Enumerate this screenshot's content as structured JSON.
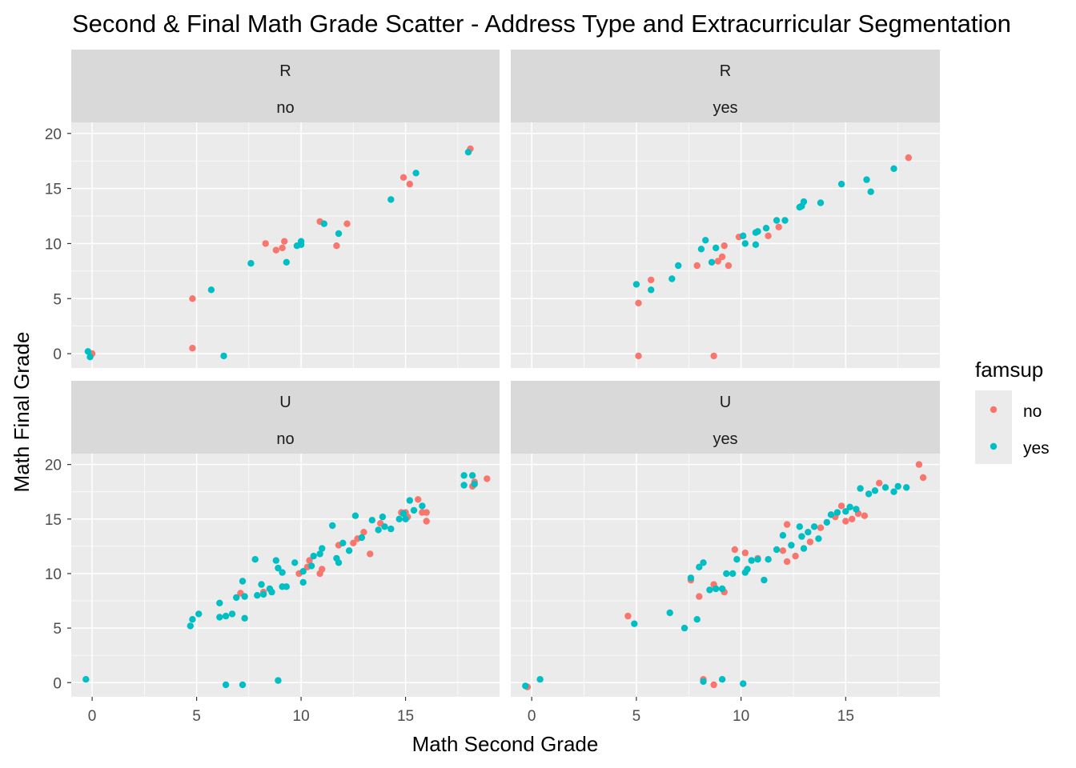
{
  "chart_data": {
    "type": "scatter",
    "title": "Second & Final Math Grade Scatter - Address Type and Extracurricular Segmentation",
    "xlabel": "Math Second Grade",
    "ylabel": "Math Final Grade",
    "xlim": [
      -1,
      19.5
    ],
    "ylim": [
      -1.3,
      21
    ],
    "x_ticks": [
      0,
      5,
      10,
      15
    ],
    "y_ticks": [
      0,
      5,
      10,
      15,
      20
    ],
    "grid": true,
    "facet_rows": [
      "R",
      "U"
    ],
    "facet_cols": [
      "no",
      "yes"
    ],
    "legend": {
      "title": "famsup",
      "position": "right",
      "entries": [
        {
          "label": "no",
          "color": "#F8766D"
        },
        {
          "label": "yes",
          "color": "#00BFC4"
        }
      ]
    },
    "panels": [
      {
        "address": "R",
        "activities": "no",
        "series": [
          {
            "name": "no",
            "points": [
              [
                0,
                0
              ],
              [
                4.8,
                5
              ],
              [
                4.8,
                0.5
              ],
              [
                8.3,
                10
              ],
              [
                8.8,
                9.4
              ],
              [
                9.1,
                9.6
              ],
              [
                9.2,
                10.2
              ],
              [
                10.9,
                12
              ],
              [
                11.7,
                9.8
              ],
              [
                12.2,
                11.8
              ],
              [
                14.9,
                16
              ],
              [
                15.2,
                15.4
              ],
              [
                18.1,
                18.6
              ]
            ]
          },
          {
            "name": "yes",
            "points": [
              [
                -0.2,
                0.2
              ],
              [
                -0.1,
                -0.3
              ],
              [
                5.7,
                5.8
              ],
              [
                6.3,
                -0.2
              ],
              [
                7.6,
                8.2
              ],
              [
                9.3,
                8.3
              ],
              [
                9.8,
                9.8
              ],
              [
                10,
                9.9
              ],
              [
                10,
                10.2
              ],
              [
                11.1,
                11.8
              ],
              [
                11.8,
                10.9
              ],
              [
                14.3,
                14
              ],
              [
                15.5,
                16.4
              ],
              [
                18,
                18.3
              ]
            ]
          }
        ]
      },
      {
        "address": "R",
        "activities": "yes",
        "series": [
          {
            "name": "no",
            "points": [
              [
                5.1,
                4.6
              ],
              [
                5.1,
                -0.2
              ],
              [
                5.7,
                6.7
              ],
              [
                7.9,
                8
              ],
              [
                8.7,
                -0.2
              ],
              [
                8.9,
                8.4
              ],
              [
                9.1,
                8.8
              ],
              [
                9.2,
                9.8
              ],
              [
                9.4,
                8
              ],
              [
                9.9,
                10.6
              ],
              [
                11.3,
                10.7
              ],
              [
                11.8,
                11.5
              ],
              [
                18,
                17.8
              ]
            ]
          },
          {
            "name": "yes",
            "points": [
              [
                5,
                6.3
              ],
              [
                5.7,
                5.8
              ],
              [
                6.7,
                6.8
              ],
              [
                7,
                8
              ],
              [
                8.1,
                9.5
              ],
              [
                8.3,
                10.3
              ],
              [
                8.6,
                8.3
              ],
              [
                8.8,
                9.6
              ],
              [
                10.1,
                10.7
              ],
              [
                10.2,
                10
              ],
              [
                10.7,
                11
              ],
              [
                10.8,
                11.1
              ],
              [
                10.7,
                9.9
              ],
              [
                11.2,
                11.4
              ],
              [
                11.7,
                12.1
              ],
              [
                12.1,
                12.1
              ],
              [
                12.8,
                13.3
              ],
              [
                12.9,
                13.4
              ],
              [
                13,
                13.8
              ],
              [
                13.8,
                13.7
              ],
              [
                14.8,
                15.4
              ],
              [
                16,
                15.8
              ],
              [
                16.2,
                14.7
              ],
              [
                17.3,
                16.8
              ]
            ]
          }
        ]
      },
      {
        "address": "U",
        "activities": "no",
        "series": [
          {
            "name": "no",
            "points": [
              [
                7.1,
                8.2
              ],
              [
                8.2,
                8.3
              ],
              [
                9.9,
                10
              ],
              [
                10.3,
                10.6
              ],
              [
                10.4,
                11.2
              ],
              [
                10.9,
                10
              ],
              [
                11,
                10.4
              ],
              [
                11.8,
                12.6
              ],
              [
                12.5,
                12.8
              ],
              [
                12.7,
                13.2
              ],
              [
                13,
                13.8
              ],
              [
                13.3,
                11.8
              ],
              [
                13.8,
                14.6
              ],
              [
                14.8,
                15.6
              ],
              [
                15,
                15.6
              ],
              [
                15.1,
                15.2
              ],
              [
                15.6,
                16.8
              ],
              [
                15.8,
                15.6
              ],
              [
                16,
                14.8
              ],
              [
                16,
                15.6
              ],
              [
                18.2,
                18
              ],
              [
                18.3,
                18.4
              ],
              [
                18.9,
                18.7
              ]
            ]
          },
          {
            "name": "yes",
            "points": [
              [
                -0.3,
                0.3
              ],
              [
                4.7,
                5.2
              ],
              [
                4.8,
                5.8
              ],
              [
                5.1,
                6.3
              ],
              [
                6.1,
                7.3
              ],
              [
                6.1,
                6
              ],
              [
                6.4,
                -0.2
              ],
              [
                6.4,
                6.1
              ],
              [
                6.7,
                6.3
              ],
              [
                6.9,
                7.8
              ],
              [
                7.2,
                -0.2
              ],
              [
                7.2,
                9.3
              ],
              [
                7.3,
                5.9
              ],
              [
                7.3,
                7.9
              ],
              [
                7.8,
                11.3
              ],
              [
                7.9,
                8
              ],
              [
                8.1,
                9
              ],
              [
                8.2,
                8.1
              ],
              [
                8.5,
                8.6
              ],
              [
                8.6,
                8.3
              ],
              [
                8.8,
                11.2
              ],
              [
                8.9,
                10.5
              ],
              [
                8.9,
                0.2
              ],
              [
                9.1,
                8.8
              ],
              [
                9.1,
                10.1
              ],
              [
                9.3,
                8.8
              ],
              [
                9.7,
                11
              ],
              [
                10.1,
                9.2
              ],
              [
                10.1,
                10.2
              ],
              [
                10.5,
                10.7
              ],
              [
                10.6,
                11.6
              ],
              [
                10.9,
                11.8
              ],
              [
                11,
                12.3
              ],
              [
                11.5,
                14.4
              ],
              [
                11.7,
                11.4
              ],
              [
                11.8,
                11
              ],
              [
                12,
                12.8
              ],
              [
                12.3,
                12.1
              ],
              [
                12.6,
                15.3
              ],
              [
                12.9,
                13.3
              ],
              [
                13.4,
                14.9
              ],
              [
                13.7,
                14
              ],
              [
                13.9,
                15.2
              ],
              [
                14,
                14.3
              ],
              [
                14.3,
                14.1
              ],
              [
                14.7,
                15
              ],
              [
                14.9,
                15.5
              ],
              [
                15,
                15
              ],
              [
                15.2,
                16.7
              ],
              [
                15.4,
                15.8
              ],
              [
                15.8,
                16.2
              ],
              [
                17.8,
                18.1
              ],
              [
                17.8,
                19
              ],
              [
                18.2,
                19
              ],
              [
                18.3,
                18.2
              ]
            ]
          }
        ]
      },
      {
        "address": "U",
        "activities": "yes",
        "series": [
          {
            "name": "no",
            "points": [
              [
                -0.2,
                -0.4
              ],
              [
                4.6,
                6.1
              ],
              [
                7.6,
                9.4
              ],
              [
                8,
                7.9
              ],
              [
                8.2,
                0.3
              ],
              [
                8.7,
                9
              ],
              [
                8.7,
                -0.2
              ],
              [
                9.2,
                8.3
              ],
              [
                9.7,
                12.2
              ],
              [
                10.2,
                11.9
              ],
              [
                10.8,
                11.4
              ],
              [
                12,
                12.1
              ],
              [
                12.2,
                11.1
              ],
              [
                12.2,
                14.5
              ],
              [
                12.6,
                11.6
              ],
              [
                13.3,
                12.9
              ],
              [
                13.8,
                14.2
              ],
              [
                14.5,
                15.2
              ],
              [
                14.8,
                16.2
              ],
              [
                15,
                14.8
              ],
              [
                15.3,
                15
              ],
              [
                15.6,
                15.5
              ],
              [
                15.9,
                15.3
              ],
              [
                16.6,
                18.3
              ],
              [
                18.5,
                20
              ],
              [
                18.7,
                18.8
              ]
            ]
          },
          {
            "name": "yes",
            "points": [
              [
                -0.3,
                -0.3
              ],
              [
                0.4,
                0.3
              ],
              [
                4.9,
                5.4
              ],
              [
                6.6,
                6.4
              ],
              [
                7.3,
                5
              ],
              [
                7.6,
                9.6
              ],
              [
                7.9,
                5.8
              ],
              [
                8,
                10.6
              ],
              [
                8.2,
                0.1
              ],
              [
                8.2,
                11
              ],
              [
                8.5,
                8.5
              ],
              [
                8.8,
                8.6
              ],
              [
                9.1,
                8.6
              ],
              [
                9.1,
                0.3
              ],
              [
                9.3,
                10
              ],
              [
                9.6,
                10
              ],
              [
                9.8,
                11.3
              ],
              [
                10.1,
                -0.1
              ],
              [
                10.2,
                10.1
              ],
              [
                10.3,
                10.4
              ],
              [
                10.5,
                11.2
              ],
              [
                10.8,
                11.3
              ],
              [
                11.1,
                9.4
              ],
              [
                11.3,
                11.3
              ],
              [
                11.7,
                12.2
              ],
              [
                12,
                13.5
              ],
              [
                12.4,
                12.6
              ],
              [
                12.8,
                14.3
              ],
              [
                12.9,
                13.4
              ],
              [
                13,
                12.3
              ],
              [
                13.2,
                13.8
              ],
              [
                13.5,
                14.3
              ],
              [
                13.7,
                13.2
              ],
              [
                14.1,
                14.7
              ],
              [
                14.3,
                15.4
              ],
              [
                14.6,
                15.6
              ],
              [
                15,
                15.7
              ],
              [
                15.2,
                16.1
              ],
              [
                15.5,
                15.9
              ],
              [
                15.7,
                17.8
              ],
              [
                16.1,
                17.3
              ],
              [
                16.4,
                17.6
              ],
              [
                16.9,
                17.9
              ],
              [
                17.3,
                17.5
              ],
              [
                17.5,
                18
              ],
              [
                17.9,
                17.9
              ]
            ]
          }
        ]
      }
    ]
  }
}
